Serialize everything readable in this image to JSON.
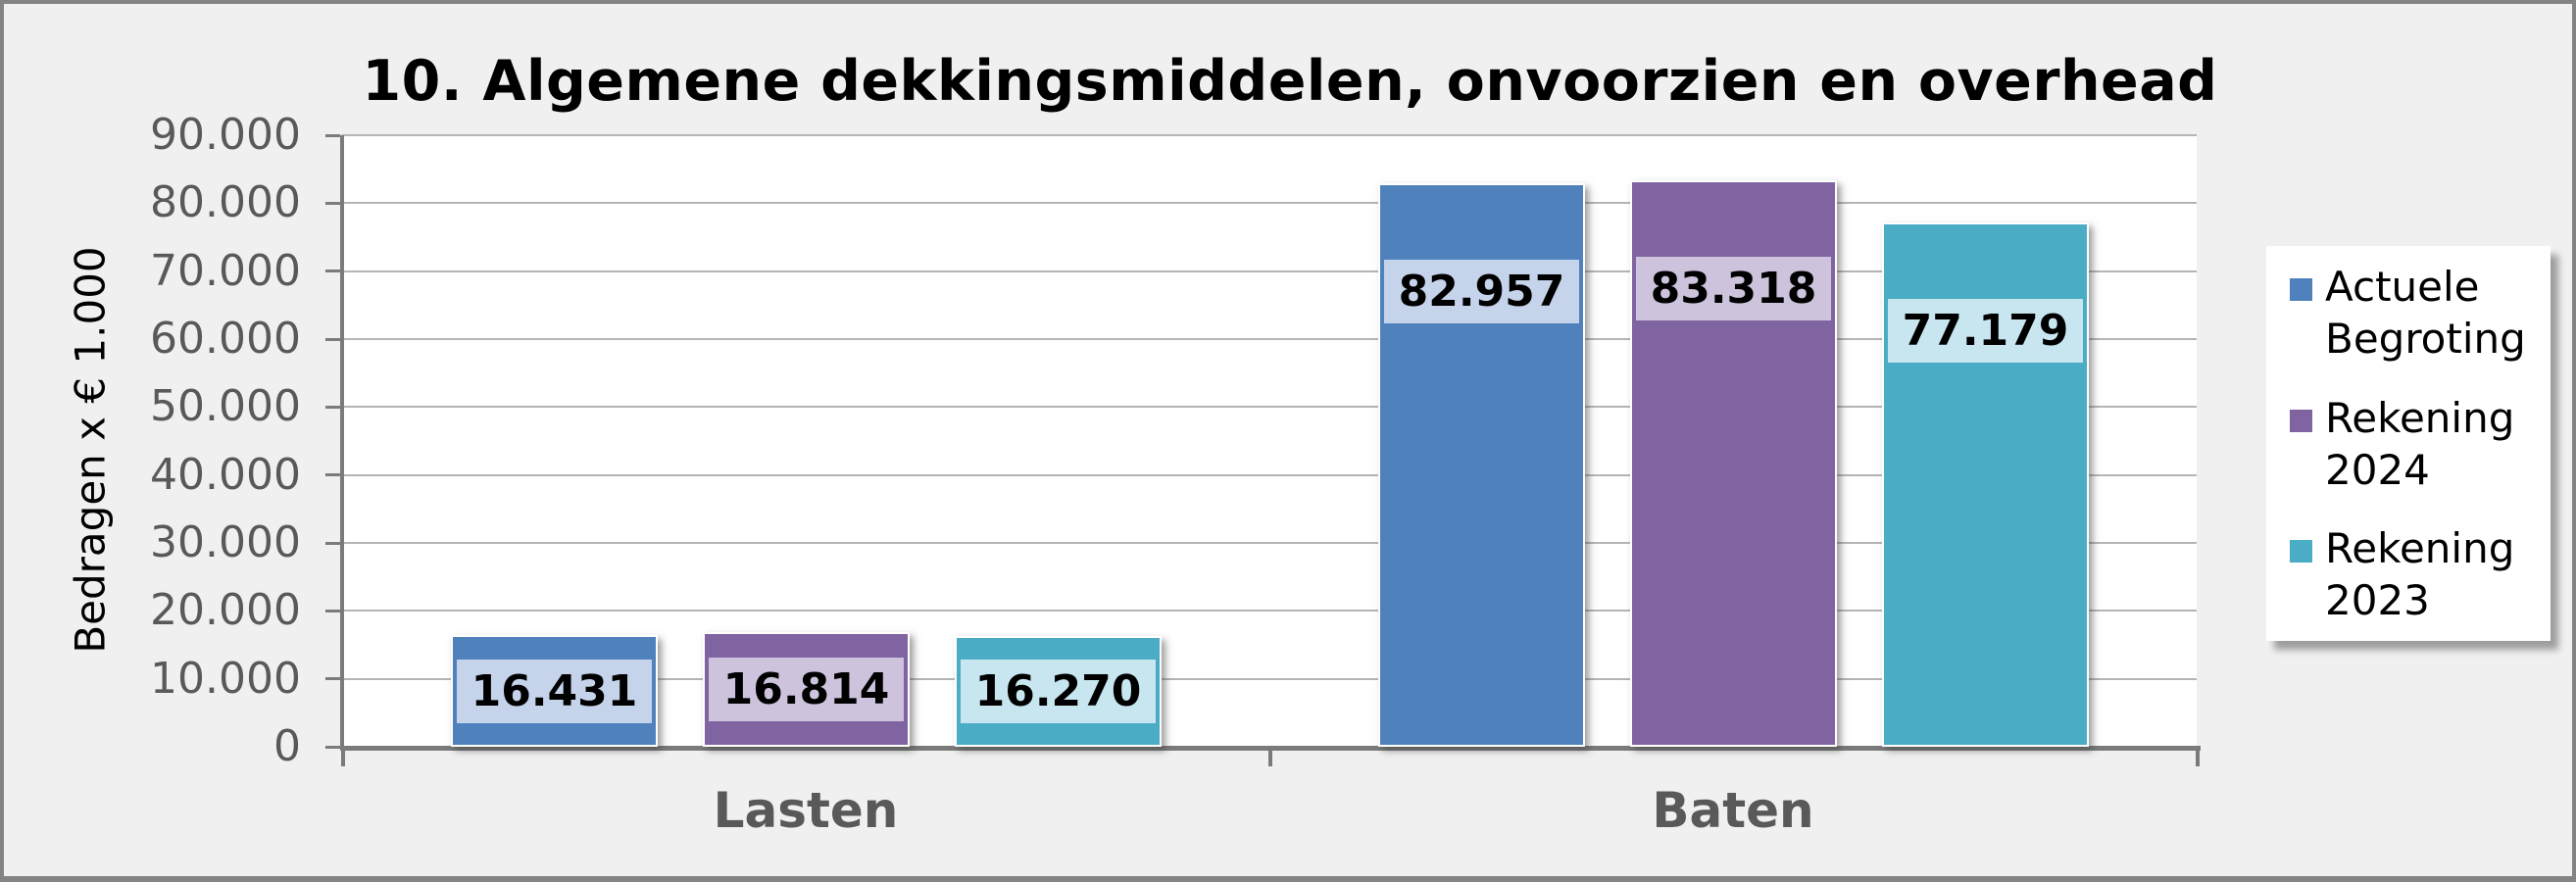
{
  "chart_data": {
    "type": "bar",
    "title": "10. Algemene dekkingsmiddelen, onvoorzien en overhead",
    "ylabel": "Bedragen x € 1.000",
    "xlabel": "",
    "categories": [
      "Lasten",
      "Baten"
    ],
    "series": [
      {
        "name": "Actuele Begroting",
        "legend_lines": [
          "Actuele",
          "Begroting"
        ],
        "color": "#4F81BD",
        "label_bg": "#C5D3EB",
        "values": [
          16431,
          82957
        ],
        "value_labels": [
          "16.431",
          "82.957"
        ]
      },
      {
        "name": "Rekening 2024",
        "legend_lines": [
          "Rekening",
          "2024"
        ],
        "color": "#8064A2",
        "label_bg": "#CDC3DC",
        "values": [
          16814,
          83318
        ],
        "value_labels": [
          "16.814",
          "83.318"
        ]
      },
      {
        "name": "Rekening 2023",
        "legend_lines": [
          "Rekening",
          "2023"
        ],
        "color": "#4BACC6",
        "label_bg": "#C8E6F0",
        "values": [
          16270,
          77179
        ],
        "value_labels": [
          "16.270",
          "77.179"
        ]
      }
    ],
    "ylim": [
      0,
      90000
    ],
    "ytick_step": 10000,
    "ytick_labels": [
      "0",
      "10.000",
      "20.000",
      "30.000",
      "40.000",
      "50.000",
      "60.000",
      "70.000",
      "80.000",
      "90.000"
    ],
    "grid": true,
    "legend_position": "right"
  },
  "colors": {
    "background": "#F0F0F1",
    "frame_border": "#848484",
    "plot_background": "#FFFFFF",
    "gridline": "#B5B5B5",
    "axis_line": "#7B7B7B",
    "tick_text": "#595959",
    "category_text": "#595959",
    "title_text": "#000000",
    "data_label_text": "#000000",
    "legend_background": "#FFFFFF"
  }
}
